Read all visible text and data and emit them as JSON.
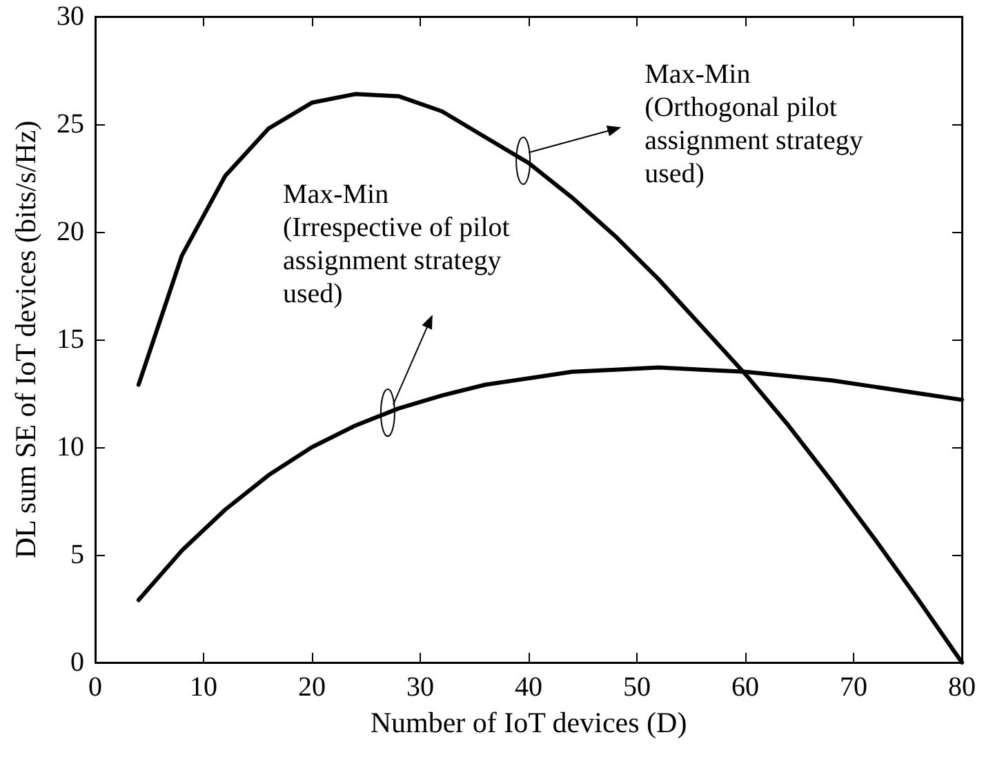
{
  "chart_data": {
    "type": "line",
    "xlabel": "Number of IoT devices (D)",
    "ylabel": "DL sum SE of IoT devices (bits/s/Hz)",
    "x": [
      4,
      8,
      12,
      16,
      20,
      24,
      28,
      32,
      36,
      40,
      44,
      48,
      52,
      56,
      60,
      64,
      68,
      72,
      76,
      80
    ],
    "series": [
      {
        "color": "#000000",
        "values": [
          12.9,
          18.9,
          22.6,
          24.8,
          26.0,
          26.4,
          26.3,
          25.6,
          24.4,
          23.2,
          21.6,
          19.8,
          17.8,
          15.6,
          13.4,
          11.0,
          8.4,
          5.7,
          2.9,
          0
        ]
      },
      {
        "color": "#000000",
        "values": [
          2.9,
          5.2,
          7.1,
          8.7,
          10.0,
          11.0,
          11.8,
          12.4,
          12.9,
          13.2,
          13.5,
          13.6,
          13.7,
          13.6,
          13.5,
          13.3,
          13.1,
          12.8,
          12.5,
          12.2
        ]
      }
    ],
    "annotations": [
      {
        "text": "Max-Min\n(Orthogonal pilot\nassignment strategy\nused)",
        "x": 39.5,
        "y": 23.3
      },
      {
        "text": "Max-Min\n(Irrespective of pilot\nassignment strategy\nused)",
        "x": 27,
        "y": 11.6
      }
    ],
    "xlim": [
      0,
      80
    ],
    "xticks": [
      0,
      10,
      20,
      30,
      40,
      50,
      60,
      70,
      80
    ],
    "ylim": [
      0,
      30
    ],
    "yticks": [
      0,
      5,
      10,
      15,
      20,
      25,
      30
    ],
    "grid": false,
    "marker": "none",
    "line_style": "solid"
  }
}
